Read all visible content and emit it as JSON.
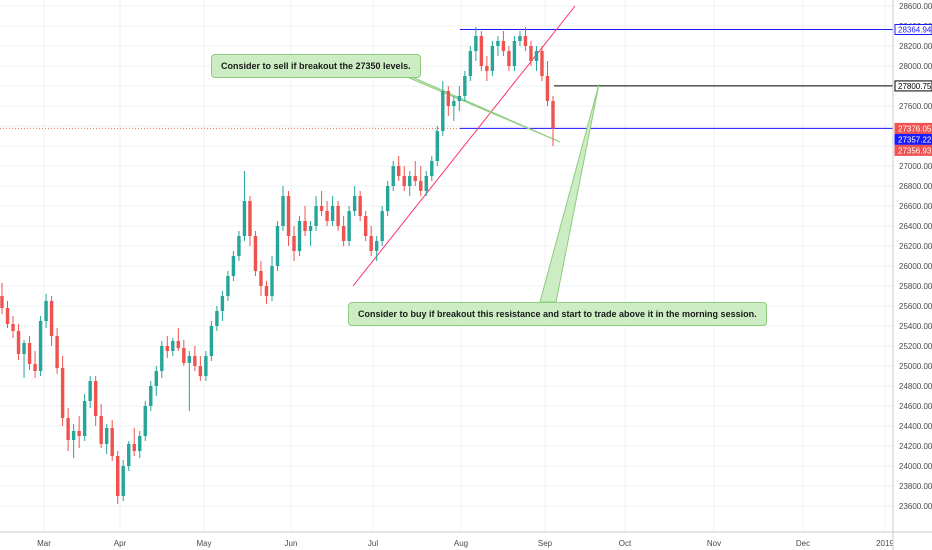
{
  "chart_data": {
    "type": "candlestick",
    "title": "",
    "xlabel": "",
    "ylabel": "",
    "ylim": [
      23400,
      28700
    ],
    "grid": true,
    "y_ticks": [
      23600,
      23800,
      24000,
      24200,
      24400,
      24600,
      24800,
      25000,
      25200,
      25400,
      25600,
      25800,
      26000,
      26200,
      26400,
      26600,
      26800,
      27000,
      27200,
      27400,
      27600,
      27800,
      28000,
      28200,
      28400,
      28600
    ],
    "x_ticks": [
      "Mar",
      "Apr",
      "May",
      "Jun",
      "Jul",
      "Aug",
      "Sep",
      "Oct",
      "Nov",
      "Dec",
      "2019"
    ],
    "colors": {
      "up": "#26a69a",
      "down": "#ef5350",
      "blue_line": "#1a1aff",
      "black_line": "#000000",
      "trend_line": "#ff3366",
      "note_fill": "#ccedc4",
      "note_border": "#8fcc7e",
      "current_price": "#ff6b4a"
    },
    "price_tags": [
      {
        "label": "28364.94",
        "value": 28364.94,
        "style": "blue"
      },
      {
        "label": "27800.75",
        "value": 27800.75,
        "style": "black"
      },
      {
        "label": "27376.05",
        "value": 27376.05,
        "style": "red"
      },
      {
        "label": "27357.22",
        "value": 27357.22,
        "style": "blue"
      },
      {
        "label": "27356.93",
        "value": 27356.93,
        "style": "red"
      }
    ],
    "horizontal_lines": [
      {
        "value": 28364.94,
        "x_start": "Aug",
        "color": "#1a1aff"
      },
      {
        "value": 27800.75,
        "x_start": "Sep",
        "color": "#000000"
      },
      {
        "value": 27376.05,
        "x_start": "Aug",
        "color": "#1a1aff"
      }
    ],
    "current_price": 27376.05,
    "annotations": [
      {
        "text": "Consider to sell if breakout the 27350 levels."
      },
      {
        "text": "Consider to buy  if breakout this resistance and start to trade above it in the morning session."
      }
    ],
    "trend_line": {
      "from": {
        "date": "2018-07-01",
        "value": 25800
      },
      "to": {
        "date": "2018-09-18",
        "value": 28550
      }
    },
    "candles": [
      {
        "o": 25700,
        "h": 25830,
        "l": 25520,
        "c": 25580
      },
      {
        "o": 25580,
        "h": 25650,
        "l": 25380,
        "c": 25420
      },
      {
        "o": 25420,
        "h": 25500,
        "l": 25280,
        "c": 25350
      },
      {
        "o": 25350,
        "h": 25420,
        "l": 25060,
        "c": 25120
      },
      {
        "o": 25120,
        "h": 25260,
        "l": 24880,
        "c": 25230
      },
      {
        "o": 25230,
        "h": 25300,
        "l": 24960,
        "c": 25020
      },
      {
        "o": 25020,
        "h": 25150,
        "l": 24880,
        "c": 24950
      },
      {
        "o": 24950,
        "h": 25500,
        "l": 24900,
        "c": 25450
      },
      {
        "o": 25450,
        "h": 25720,
        "l": 25380,
        "c": 25650
      },
      {
        "o": 25650,
        "h": 25700,
        "l": 25200,
        "c": 25300
      },
      {
        "o": 25300,
        "h": 25380,
        "l": 24920,
        "c": 24980
      },
      {
        "o": 24980,
        "h": 25100,
        "l": 24400,
        "c": 24480
      },
      {
        "o": 24480,
        "h": 24580,
        "l": 24150,
        "c": 24260
      },
      {
        "o": 24260,
        "h": 24420,
        "l": 24080,
        "c": 24350
      },
      {
        "o": 24350,
        "h": 24500,
        "l": 24180,
        "c": 24300
      },
      {
        "o": 24300,
        "h": 24720,
        "l": 24250,
        "c": 24650
      },
      {
        "o": 24650,
        "h": 24900,
        "l": 24580,
        "c": 24850
      },
      {
        "o": 24850,
        "h": 24900,
        "l": 24400,
        "c": 24500
      },
      {
        "o": 24500,
        "h": 24620,
        "l": 24180,
        "c": 24220
      },
      {
        "o": 24220,
        "h": 24420,
        "l": 24120,
        "c": 24380
      },
      {
        "o": 24380,
        "h": 24460,
        "l": 24050,
        "c": 24100
      },
      {
        "o": 24100,
        "h": 24150,
        "l": 23620,
        "c": 23700
      },
      {
        "o": 23700,
        "h": 24060,
        "l": 23650,
        "c": 24000
      },
      {
        "o": 24000,
        "h": 24250,
        "l": 23950,
        "c": 24220
      },
      {
        "o": 24220,
        "h": 24380,
        "l": 24100,
        "c": 24150
      },
      {
        "o": 24150,
        "h": 24350,
        "l": 24080,
        "c": 24300
      },
      {
        "o": 24300,
        "h": 24650,
        "l": 24250,
        "c": 24600
      },
      {
        "o": 24600,
        "h": 24850,
        "l": 24550,
        "c": 24800
      },
      {
        "o": 24800,
        "h": 25000,
        "l": 24700,
        "c": 24950
      },
      {
        "o": 24950,
        "h": 25250,
        "l": 24880,
        "c": 25200
      },
      {
        "o": 25200,
        "h": 25300,
        "l": 25080,
        "c": 25150
      },
      {
        "o": 25150,
        "h": 25280,
        "l": 25100,
        "c": 25250
      },
      {
        "o": 25250,
        "h": 25380,
        "l": 25150,
        "c": 25180
      },
      {
        "o": 25180,
        "h": 25260,
        "l": 25000,
        "c": 25030
      },
      {
        "o": 25030,
        "h": 25150,
        "l": 24550,
        "c": 25100
      },
      {
        "o": 25100,
        "h": 25200,
        "l": 24950,
        "c": 25000
      },
      {
        "o": 25000,
        "h": 25100,
        "l": 24850,
        "c": 24900
      },
      {
        "o": 24900,
        "h": 25150,
        "l": 24850,
        "c": 25100
      },
      {
        "o": 25100,
        "h": 25450,
        "l": 25050,
        "c": 25400
      },
      {
        "o": 25400,
        "h": 25600,
        "l": 25350,
        "c": 25550
      },
      {
        "o": 25550,
        "h": 25750,
        "l": 25450,
        "c": 25700
      },
      {
        "o": 25700,
        "h": 25950,
        "l": 25650,
        "c": 25900
      },
      {
        "o": 25900,
        "h": 26150,
        "l": 25850,
        "c": 26100
      },
      {
        "o": 26100,
        "h": 26350,
        "l": 26050,
        "c": 26300
      },
      {
        "o": 26300,
        "h": 26950,
        "l": 26250,
        "c": 26650
      },
      {
        "o": 26650,
        "h": 26700,
        "l": 26200,
        "c": 26300
      },
      {
        "o": 26300,
        "h": 26350,
        "l": 25900,
        "c": 25950
      },
      {
        "o": 25950,
        "h": 26050,
        "l": 25700,
        "c": 25800
      },
      {
        "o": 25800,
        "h": 25850,
        "l": 25620,
        "c": 25700
      },
      {
        "o": 25700,
        "h": 26100,
        "l": 25650,
        "c": 26000
      },
      {
        "o": 26000,
        "h": 26450,
        "l": 25950,
        "c": 26400
      },
      {
        "o": 26400,
        "h": 26800,
        "l": 26350,
        "c": 26700
      },
      {
        "o": 26700,
        "h": 26750,
        "l": 26200,
        "c": 26300
      },
      {
        "o": 26300,
        "h": 26400,
        "l": 26050,
        "c": 26150
      },
      {
        "o": 26150,
        "h": 26500,
        "l": 26100,
        "c": 26450
      },
      {
        "o": 26450,
        "h": 26600,
        "l": 26300,
        "c": 26350
      },
      {
        "o": 26350,
        "h": 26450,
        "l": 26200,
        "c": 26400
      },
      {
        "o": 26400,
        "h": 26700,
        "l": 26350,
        "c": 26600
      },
      {
        "o": 26600,
        "h": 26750,
        "l": 26500,
        "c": 26550
      },
      {
        "o": 26550,
        "h": 26650,
        "l": 26400,
        "c": 26450
      },
      {
        "o": 26450,
        "h": 26700,
        "l": 26400,
        "c": 26600
      },
      {
        "o": 26600,
        "h": 26650,
        "l": 26350,
        "c": 26400
      },
      {
        "o": 26400,
        "h": 26500,
        "l": 26200,
        "c": 26250
      },
      {
        "o": 26250,
        "h": 26600,
        "l": 26200,
        "c": 26550
      },
      {
        "o": 26550,
        "h": 26800,
        "l": 26500,
        "c": 26700
      },
      {
        "o": 26700,
        "h": 26750,
        "l": 26450,
        "c": 26500
      },
      {
        "o": 26500,
        "h": 26550,
        "l": 26250,
        "c": 26300
      },
      {
        "o": 26300,
        "h": 26400,
        "l": 26100,
        "c": 26150
      },
      {
        "o": 26150,
        "h": 26300,
        "l": 26050,
        "c": 26250
      },
      {
        "o": 26250,
        "h": 26600,
        "l": 26200,
        "c": 26550
      },
      {
        "o": 26550,
        "h": 26850,
        "l": 26500,
        "c": 26800
      },
      {
        "o": 26800,
        "h": 27050,
        "l": 26750,
        "c": 27000
      },
      {
        "o": 27000,
        "h": 27100,
        "l": 26850,
        "c": 26900
      },
      {
        "o": 26900,
        "h": 27000,
        "l": 26750,
        "c": 26800
      },
      {
        "o": 26800,
        "h": 26950,
        "l": 26700,
        "c": 26900
      },
      {
        "o": 26900,
        "h": 27050,
        "l": 26800,
        "c": 26850
      },
      {
        "o": 26850,
        "h": 27000,
        "l": 26700,
        "c": 26750
      },
      {
        "o": 26750,
        "h": 26950,
        "l": 26700,
        "c": 26900
      },
      {
        "o": 26900,
        "h": 27100,
        "l": 26850,
        "c": 27050
      },
      {
        "o": 27050,
        "h": 27400,
        "l": 27000,
        "c": 27350
      },
      {
        "o": 27350,
        "h": 27850,
        "l": 27300,
        "c": 27750
      },
      {
        "o": 27750,
        "h": 27800,
        "l": 27500,
        "c": 27600
      },
      {
        "o": 27600,
        "h": 27700,
        "l": 27450,
        "c": 27650
      },
      {
        "o": 27650,
        "h": 27800,
        "l": 27550,
        "c": 27700
      },
      {
        "o": 27700,
        "h": 27950,
        "l": 27650,
        "c": 27900
      },
      {
        "o": 27900,
        "h": 28200,
        "l": 27850,
        "c": 28150
      },
      {
        "o": 28150,
        "h": 28390,
        "l": 28050,
        "c": 28300
      },
      {
        "o": 28300,
        "h": 28350,
        "l": 27950,
        "c": 28000
      },
      {
        "o": 28000,
        "h": 28100,
        "l": 27850,
        "c": 27950
      },
      {
        "o": 27950,
        "h": 28250,
        "l": 27900,
        "c": 28200
      },
      {
        "o": 28200,
        "h": 28300,
        "l": 28100,
        "c": 28250
      },
      {
        "o": 28250,
        "h": 28350,
        "l": 28100,
        "c": 28150
      },
      {
        "o": 28150,
        "h": 28200,
        "l": 27950,
        "c": 28000
      },
      {
        "o": 28000,
        "h": 28300,
        "l": 27950,
        "c": 28250
      },
      {
        "o": 28250,
        "h": 28350,
        "l": 28200,
        "c": 28300
      },
      {
        "o": 28300,
        "h": 28390,
        "l": 28150,
        "c": 28200
      },
      {
        "o": 28200,
        "h": 28250,
        "l": 28000,
        "c": 28050
      },
      {
        "o": 28050,
        "h": 28200,
        "l": 27950,
        "c": 28150
      },
      {
        "o": 28150,
        "h": 28200,
        "l": 27850,
        "c": 27900
      },
      {
        "o": 27900,
        "h": 28050,
        "l": 27600,
        "c": 27650
      },
      {
        "o": 27650,
        "h": 27700,
        "l": 27200,
        "c": 27376.05
      }
    ]
  }
}
